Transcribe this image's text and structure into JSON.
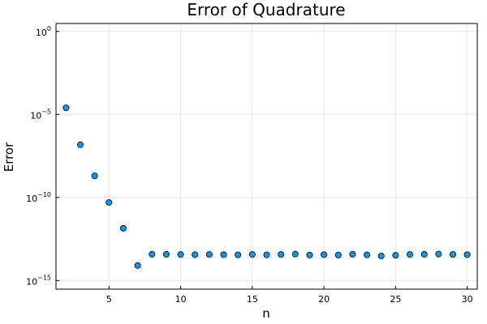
{
  "chart_data": {
    "type": "scatter",
    "title": "Error of Quadrature",
    "xlabel": "n",
    "ylabel": "Error",
    "yscale": "log10",
    "xlim": [
      1.3,
      30.7
    ],
    "ylim": [
      3e-16,
      3
    ],
    "grid": true,
    "legend": "none",
    "point_color": "#009af9",
    "x_ticks": [
      5,
      10,
      15,
      20,
      25,
      30
    ],
    "y_ticks": [
      {
        "base": "10",
        "exp": "0",
        "value": 1
      },
      {
        "base": "10",
        "exp": "−5",
        "value": 1e-05
      },
      {
        "base": "10",
        "exp": "−10",
        "value": 1e-10
      },
      {
        "base": "10",
        "exp": "−15",
        "value": 1e-15
      }
    ],
    "series": [
      {
        "x": [
          2,
          3,
          4,
          5,
          6,
          7,
          8,
          9,
          10,
          11,
          12,
          13,
          14,
          15,
          16,
          17,
          18,
          19,
          20,
          21,
          22,
          23,
          24,
          25,
          26,
          27,
          28,
          29,
          30
        ],
        "y": [
          2.5e-05,
          1.5e-07,
          2e-09,
          5e-11,
          1.4e-12,
          8e-15,
          3.8e-14,
          3.8e-14,
          3.7e-14,
          3.6e-14,
          3.7e-14,
          3.6e-14,
          3.5e-14,
          3.7e-14,
          3.5e-14,
          3.7e-14,
          3.9e-14,
          3.4e-14,
          3.6e-14,
          3.4e-14,
          3.8e-14,
          3.5e-14,
          3e-14,
          3.3e-14,
          3.7e-14,
          3.8e-14,
          3.9e-14,
          3.7e-14,
          3.6e-14
        ]
      }
    ]
  }
}
